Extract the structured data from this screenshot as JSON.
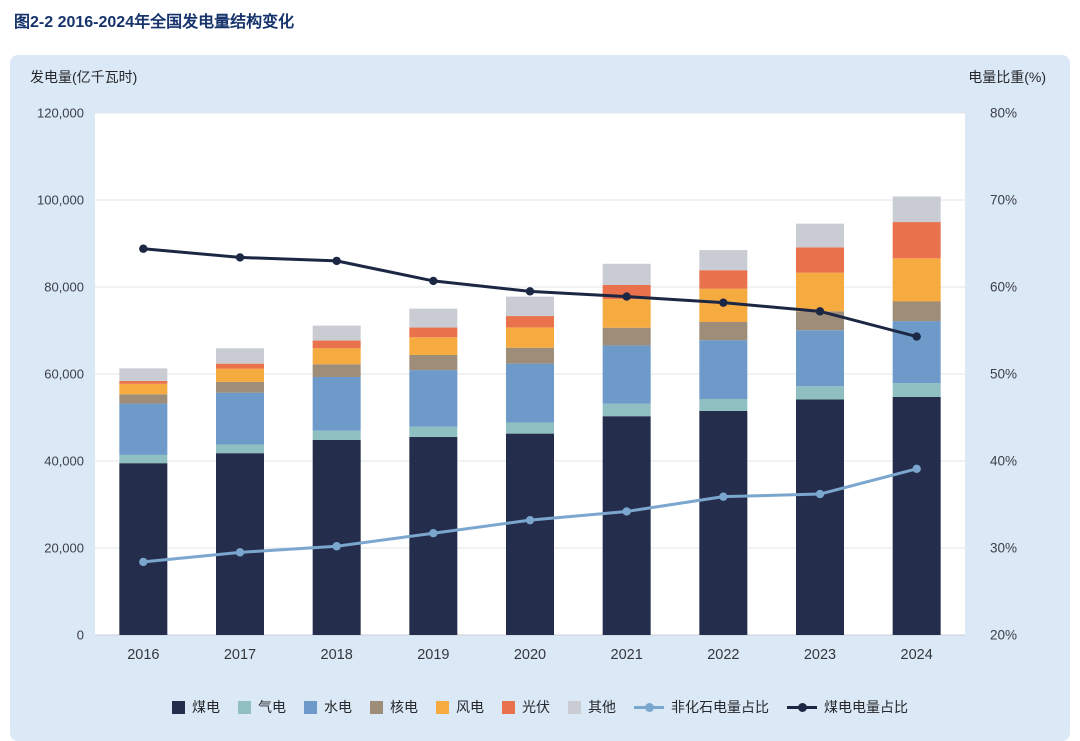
{
  "page": {
    "title": "图2-2 2016-2024年全国发电量结构变化"
  },
  "axes": {
    "left_ticks": [
      "120,000",
      "100,000",
      "80,000",
      "60,000",
      "40,000",
      "20,000",
      "0"
    ],
    "right_ticks": [
      "80%",
      "70%",
      "60%",
      "50%",
      "40%",
      "30%",
      "20%"
    ]
  },
  "chart_data": {
    "type": "bar",
    "stacked": true,
    "title": "图2-2 2016-2024年全国发电量结构变化",
    "categories": [
      "2016",
      "2017",
      "2018",
      "2019",
      "2020",
      "2021",
      "2022",
      "2023",
      "2024"
    ],
    "left_axis": {
      "title": "发电量(亿千瓦时)",
      "min": 0,
      "max": 120000,
      "step": 20000
    },
    "right_axis": {
      "title": "电量比重(%)",
      "min": 20,
      "max": 80,
      "step": 10
    },
    "grid": true,
    "legend_position": "bottom",
    "bar_series": [
      {
        "key": "coal",
        "name": "煤电",
        "color": "#242e4c",
        "values": [
          39500,
          41800,
          44830,
          45540,
          46300,
          50300,
          51500,
          54140,
          54720
        ]
      },
      {
        "key": "gas",
        "name": "气电",
        "color": "#8fbfc0",
        "values": [
          1900,
          2000,
          2150,
          2330,
          2530,
          2870,
          2760,
          3060,
          3180
        ]
      },
      {
        "key": "hydro",
        "name": "水电",
        "color": "#6d9ac9",
        "values": [
          11800,
          11900,
          12330,
          13020,
          13550,
          13400,
          13520,
          12860,
          14260
        ]
      },
      {
        "key": "nuclear",
        "name": "核电",
        "color": "#9d8d79",
        "values": [
          2130,
          2480,
          2940,
          3490,
          3660,
          4070,
          4180,
          4350,
          4510
        ]
      },
      {
        "key": "wind",
        "name": "风电",
        "color": "#f6ab40",
        "values": [
          2410,
          3030,
          3660,
          4060,
          4670,
          6560,
          7630,
          8860,
          9920
        ]
      },
      {
        "key": "solar",
        "name": "光伏",
        "color": "#e9714b",
        "values": [
          660,
          1170,
          1780,
          2240,
          2610,
          3270,
          4270,
          5840,
          8340
        ]
      },
      {
        "key": "other",
        "name": "其他",
        "color": "#c9ccd3",
        "values": [
          2900,
          3530,
          3430,
          4350,
          4470,
          4870,
          4630,
          5460,
          5870
        ]
      }
    ],
    "line_series": [
      {
        "key": "nonfossil-share",
        "name": "非化石电量占比",
        "color": "#7ba7cf",
        "axis": "right",
        "values": [
          28.4,
          29.5,
          30.2,
          31.7,
          33.2,
          34.2,
          35.9,
          36.2,
          39.1
        ]
      },
      {
        "key": "coal-share",
        "name": "煤电电量占比",
        "color": "#1c2744",
        "axis": "right",
        "values": [
          64.4,
          63.4,
          63.0,
          60.7,
          59.5,
          58.9,
          58.2,
          57.2,
          54.3
        ]
      }
    ],
    "colors": {
      "panel_bg": "#dbe8f5",
      "plot_bg": "#ffffff",
      "grid": "#e1e5ea",
      "axis_bottom": "#c9ced6",
      "title": "#16336b"
    }
  }
}
